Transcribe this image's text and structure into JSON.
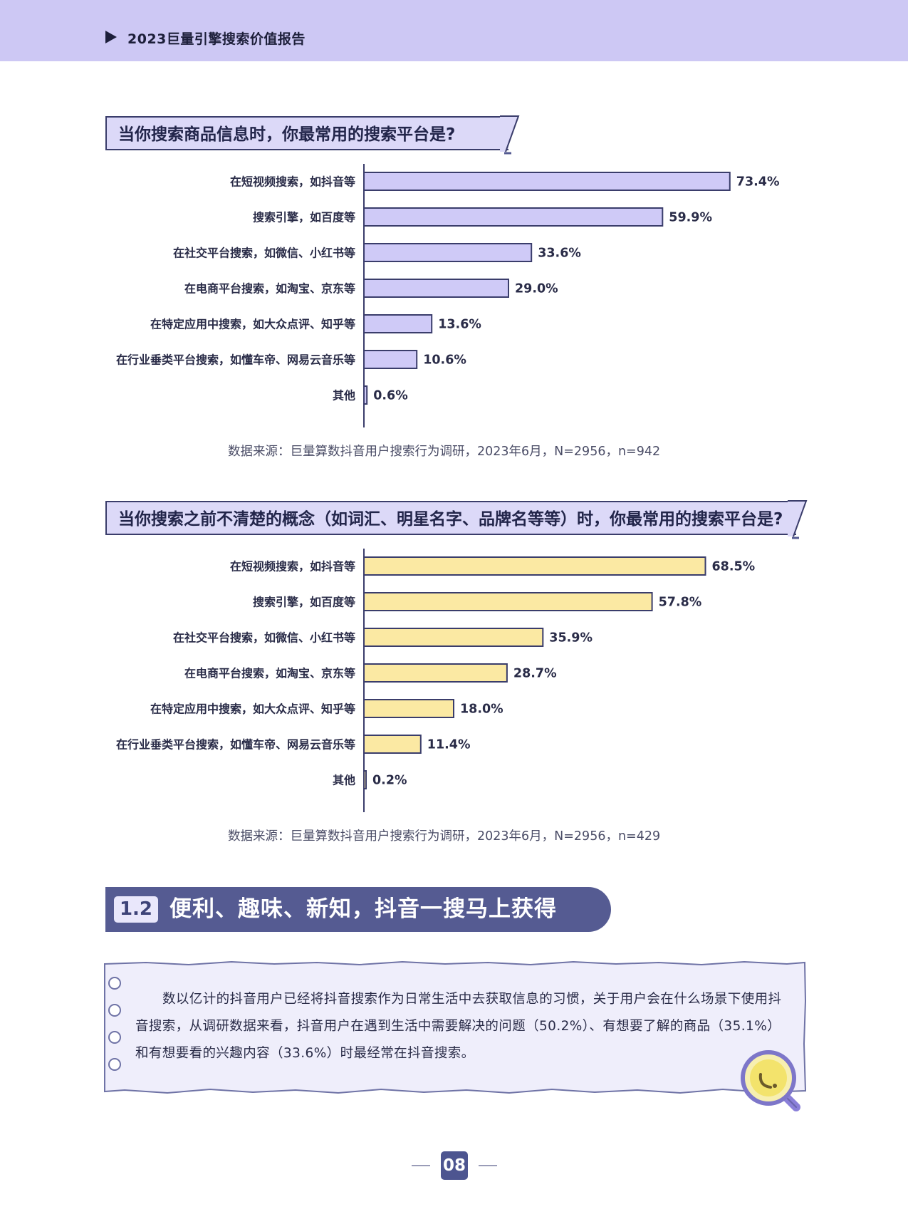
{
  "header": {
    "title": "2023巨量引擎搜索价值报告"
  },
  "charts": [
    {
      "question": "当你搜索商品信息时，你最常用的搜索平台是?",
      "source": "数据来源：巨量算数抖音用户搜索行为调研，2023年6月，N=2956，n=942",
      "bar_color": "#cfcaf7"
    },
    {
      "question": "当你搜索之前不清楚的概念（如词汇、明星名字、品牌名等等）时，你最常用的搜索平台是?",
      "source": "数据来源：巨量算数抖音用户搜索行为调研，2023年6月，N=2956，n=429",
      "bar_color": "#fbe9a3"
    }
  ],
  "chart_data": [
    {
      "type": "bar",
      "orientation": "horizontal",
      "title": "当你搜索商品信息时，你最常用的搜索平台是?",
      "categories": [
        "在短视频搜索，如抖音等",
        "搜索引擎，如百度等",
        "在社交平台搜索，如微信、小红书等",
        "在电商平台搜索，如淘宝、京东等",
        "在特定应用中搜索，如大众点评、知乎等",
        "在行业垂类平台搜索，如懂车帝、网易云音乐等",
        "其他"
      ],
      "values": [
        73.4,
        59.9,
        33.6,
        29.0,
        13.6,
        10.6,
        0.6
      ],
      "labels": [
        "73.4%",
        "59.9%",
        "33.6%",
        "29.0%",
        "13.6%",
        "10.6%",
        "0.6%"
      ],
      "xlim": [
        0,
        100
      ],
      "grid": false
    },
    {
      "type": "bar",
      "orientation": "horizontal",
      "title": "当你搜索之前不清楚的概念（如词汇、明星名字、品牌名等等）时，你最常用的搜索平台是?",
      "categories": [
        "在短视频搜索，如抖音等",
        "搜索引擎，如百度等",
        "在社交平台搜索，如微信、小红书等",
        "在电商平台搜索，如淘宝、京东等",
        "在特定应用中搜索，如大众点评、知乎等",
        "在行业垂类平台搜索，如懂车帝、网易云音乐等",
        "其他"
      ],
      "values": [
        68.5,
        57.8,
        35.9,
        28.7,
        18.0,
        11.4,
        0.2
      ],
      "labels": [
        "68.5%",
        "57.8%",
        "35.9%",
        "28.7%",
        "18.0%",
        "11.4%",
        "0.2%"
      ],
      "xlim": [
        0,
        100
      ],
      "grid": false
    }
  ],
  "section": {
    "number": "1.2",
    "title": "便利、趣味、新知，抖音一搜马上获得"
  },
  "note": {
    "text": "数以亿计的抖音用户已经将抖音搜索作为日常生活中去获取信息的习惯，关于用户会在什么场景下使用抖音搜索，从调研数据来看，抖音用户在遇到生活中需要解决的问题（50.2%）、有想要了解的商品（35.1%）和有想要看的兴趣内容（33.6%）时最经常在抖音搜索。",
    "icon": "magnifier-icon"
  },
  "footer": {
    "page_number": "08"
  },
  "colors": {
    "header_band": "#cdc8f4",
    "accent_dark": "#3a3d6b",
    "purple_bar": "#cfcaf7",
    "yellow_bar": "#fbe9a3"
  }
}
